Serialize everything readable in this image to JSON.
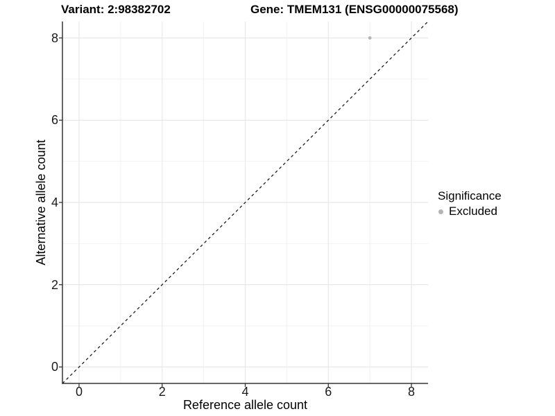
{
  "title": {
    "variant": "Variant: 2:98382702",
    "gene": "Gene: TMEM131 (ENSG00000075568)"
  },
  "axes": {
    "x_label": "Reference allele count",
    "y_label": "Alternative allele count"
  },
  "legend": {
    "title": "Significance",
    "items": [
      {
        "label": "Excluded",
        "color": "#b4b4b4"
      }
    ]
  },
  "colors": {
    "background": "#ffffff",
    "grid_major": "#e8e8e8",
    "grid_minor": "#f2f2f2",
    "axis_line": "#333333",
    "tick_mark": "#333333",
    "dashed_line": "#1a1a1a",
    "point": "#b4b4b4"
  },
  "chart_data": {
    "type": "scatter",
    "title": "Variant: 2:98382702   Gene: TMEM131 (ENSG00000075568)",
    "xlabel": "Reference allele count",
    "ylabel": "Alternative allele count",
    "xlim": [
      -0.4,
      8.4
    ],
    "ylim": [
      -0.4,
      8.4
    ],
    "x_ticks": [
      0,
      2,
      4,
      6,
      8
    ],
    "y_ticks": [
      0,
      2,
      4,
      6,
      8
    ],
    "x_minor_ticks": [
      1,
      3,
      5,
      7
    ],
    "y_minor_ticks": [
      1,
      3,
      5,
      7
    ],
    "grid": true,
    "legend_position": "right",
    "series": [
      {
        "name": "Excluded",
        "color": "#b4b4b4",
        "points": [
          [
            7,
            8
          ]
        ]
      }
    ],
    "reference_line": {
      "kind": "identity",
      "equation": "y = x",
      "style": "dashed",
      "color": "#1a1a1a"
    }
  }
}
